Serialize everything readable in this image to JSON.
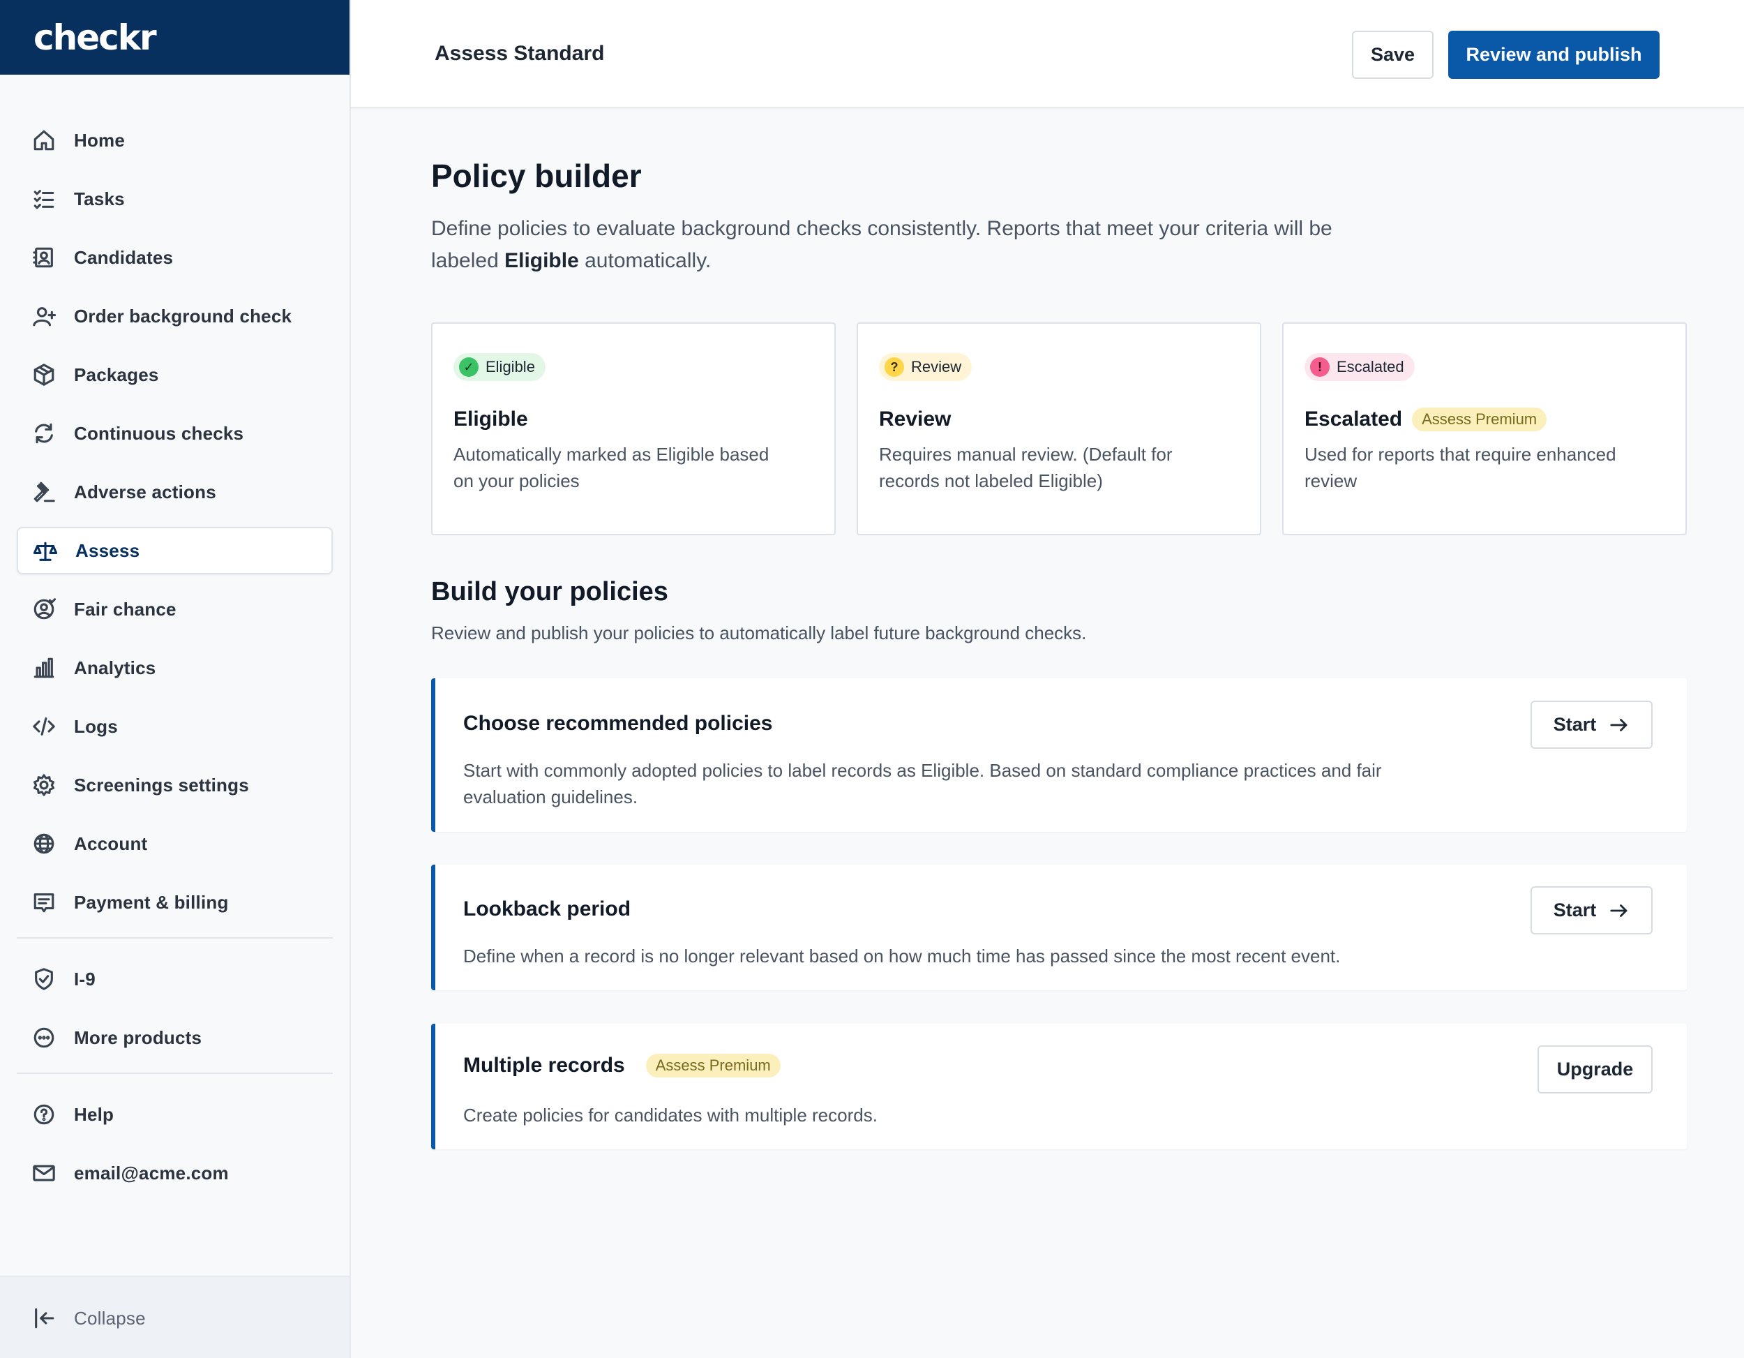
{
  "brand": {
    "logo_text": "checkr"
  },
  "sidebar": {
    "items": [
      {
        "label": "Home",
        "icon": "home-icon"
      },
      {
        "label": "Tasks",
        "icon": "checklist-icon"
      },
      {
        "label": "Candidates",
        "icon": "contact-card-icon"
      },
      {
        "label": "Order background check",
        "icon": "user-plus-icon"
      },
      {
        "label": "Packages",
        "icon": "package-icon"
      },
      {
        "label": "Continuous checks",
        "icon": "refresh-icon"
      },
      {
        "label": "Adverse actions",
        "icon": "gavel-icon"
      },
      {
        "label": "Assess",
        "icon": "scale-icon",
        "active": true
      },
      {
        "label": "Fair chance",
        "icon": "user-circle-icon"
      },
      {
        "label": "Analytics",
        "icon": "bar-chart-icon"
      },
      {
        "label": "Logs",
        "icon": "code-icon"
      },
      {
        "label": "Screenings settings",
        "icon": "gear-icon"
      },
      {
        "label": "Account",
        "icon": "globe-icon"
      },
      {
        "label": "Payment & billing",
        "icon": "receipt-icon"
      }
    ],
    "secondary": [
      {
        "label": "I-9",
        "icon": "shield-check-icon"
      },
      {
        "label": "More products",
        "icon": "more-icon"
      }
    ],
    "footer": [
      {
        "label": "Help",
        "icon": "help-icon"
      },
      {
        "label": "email@acme.com",
        "icon": "mail-icon"
      }
    ],
    "collapse_label": "Collapse"
  },
  "header": {
    "title": "Assess Standard",
    "save_label": "Save",
    "publish_label": "Review and publish"
  },
  "main": {
    "title": "Policy builder",
    "intro_before": "Define policies to evaluate background checks consistently. Reports that meet your criteria will be labeled ",
    "intro_bold": "Eligible",
    "intro_after": " automatically.",
    "label_cards": [
      {
        "pill": "Eligible",
        "pill_glyph": "✓",
        "title": "Eligible",
        "desc": "Automatically marked as Eligible based on your policies"
      },
      {
        "pill": "Review",
        "pill_glyph": "?",
        "title": "Review",
        "desc": "Requires manual review. (Default for records not labeled Eligible)"
      },
      {
        "pill": "Escalated",
        "pill_glyph": "!",
        "title": "Escalated",
        "badge": "Assess Premium",
        "desc": "Used for reports that require enhanced review"
      }
    ],
    "build_title": "Build your policies",
    "build_sub": "Review and publish your policies to automatically label future background checks.",
    "policies": [
      {
        "title": "Choose recommended policies",
        "desc": "Start with commonly adopted policies to label records as Eligible. Based on standard compliance practices and fair evaluation guidelines.",
        "action": "Start"
      },
      {
        "title": "Lookback period",
        "desc": "Define when a record is no longer relevant based on how much time has passed since the most recent event.",
        "action": "Start"
      },
      {
        "title": "Multiple records",
        "badge": "Assess Premium",
        "desc": "Create policies for candidates with multiple records.",
        "action": "Upgrade"
      }
    ]
  },
  "colors": {
    "brand_navy": "#07305f",
    "primary_blue": "#0a59a8",
    "eligible_green": "#3cc266",
    "review_yellow": "#ffd54a",
    "escalated_pink": "#f45d8e",
    "premium_bg": "#fbefbb"
  }
}
